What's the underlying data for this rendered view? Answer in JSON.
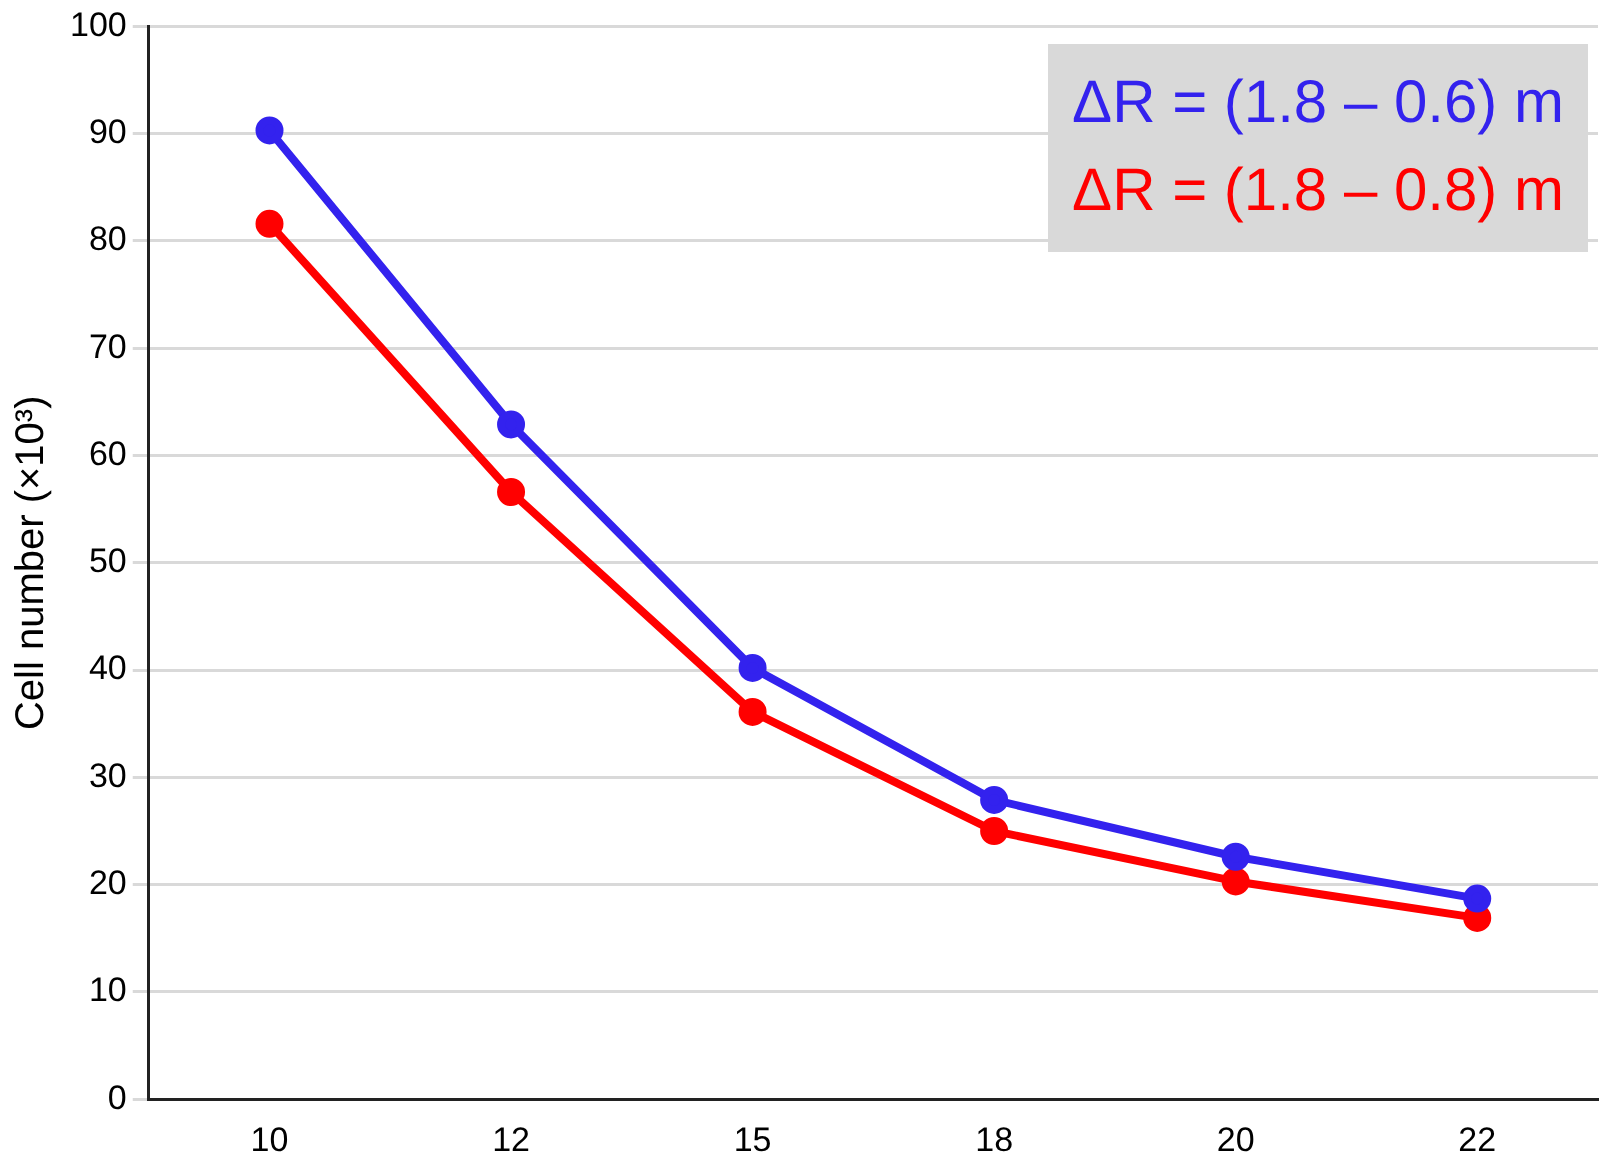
{
  "chart_data": {
    "type": "line",
    "ylabel": "Cell number (×10³)",
    "categories": [
      "10",
      "12",
      "15",
      "18",
      "20",
      "22"
    ],
    "series": [
      {
        "name": "ΔR = (1.8 – 0.6) m",
        "color": "#3322ee",
        "values": [
          90.3,
          62.9,
          40.2,
          27.9,
          22.6,
          18.7
        ]
      },
      {
        "name": "ΔR = (1.8 – 0.8) m",
        "color": "#ff0000",
        "values": [
          81.6,
          56.6,
          36.1,
          25,
          20.3,
          16.9
        ]
      }
    ],
    "ylim": [
      0,
      100
    ],
    "yticks": [
      0,
      10,
      20,
      30,
      40,
      50,
      60,
      70,
      80,
      90,
      100
    ],
    "grid": "y",
    "legend": "top right",
    "marker": "circle",
    "line_style": "solid"
  }
}
